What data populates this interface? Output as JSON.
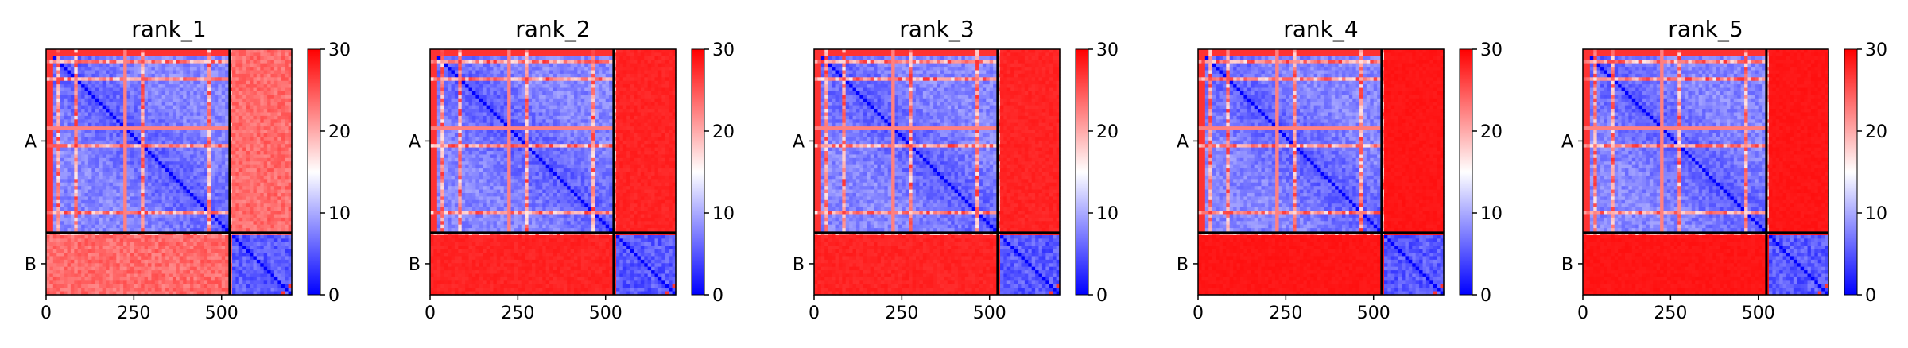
{
  "chart_data": [
    {
      "type": "heatmap",
      "title": "rank_1",
      "chains": [
        "A",
        "B"
      ],
      "chain_lengths": [
        523,
        177
      ],
      "x_ticks": [
        "0",
        "250",
        "500"
      ],
      "x_tick_values": [
        0,
        250,
        500
      ],
      "colorbar": {
        "ticks": [
          "0",
          "10",
          "20",
          "30"
        ],
        "tick_values": [
          0,
          10,
          20,
          30
        ],
        "range": [
          0,
          30
        ],
        "colormap": "bwr"
      },
      "inter_chain_level": 0.85
    },
    {
      "type": "heatmap",
      "title": "rank_2",
      "chains": [
        "A",
        "B"
      ],
      "chain_lengths": [
        523,
        177
      ],
      "x_ticks": [
        "0",
        "250",
        "500"
      ],
      "x_tick_values": [
        0,
        250,
        500
      ],
      "colorbar": {
        "ticks": [
          "0",
          "10",
          "20",
          "30"
        ],
        "tick_values": [
          0,
          10,
          20,
          30
        ],
        "range": [
          0,
          30
        ],
        "colormap": "bwr"
      },
      "inter_chain_level": 0.95
    },
    {
      "type": "heatmap",
      "title": "rank_3",
      "chains": [
        "A",
        "B"
      ],
      "chain_lengths": [
        523,
        177
      ],
      "x_ticks": [
        "0",
        "250",
        "500"
      ],
      "x_tick_values": [
        0,
        250,
        500
      ],
      "colorbar": {
        "ticks": [
          "0",
          "10",
          "20",
          "30"
        ],
        "tick_values": [
          0,
          10,
          20,
          30
        ],
        "range": [
          0,
          30
        ],
        "colormap": "bwr"
      },
      "inter_chain_level": 0.95
    },
    {
      "type": "heatmap",
      "title": "rank_4",
      "chains": [
        "A",
        "B"
      ],
      "chain_lengths": [
        523,
        177
      ],
      "x_ticks": [
        "0",
        "250",
        "500"
      ],
      "x_tick_values": [
        0,
        250,
        500
      ],
      "colorbar": {
        "ticks": [
          "0",
          "10",
          "20",
          "30"
        ],
        "tick_values": [
          0,
          10,
          20,
          30
        ],
        "range": [
          0,
          30
        ],
        "colormap": "bwr"
      },
      "inter_chain_level": 0.97
    },
    {
      "type": "heatmap",
      "title": "rank_5",
      "chains": [
        "A",
        "B"
      ],
      "chain_lengths": [
        523,
        177
      ],
      "x_ticks": [
        "0",
        "250",
        "500"
      ],
      "x_tick_values": [
        0,
        250,
        500
      ],
      "colorbar": {
        "ticks": [
          "0",
          "10",
          "20",
          "30"
        ],
        "tick_values": [
          0,
          10,
          20,
          30
        ],
        "range": [
          0,
          30
        ],
        "colormap": "bwr"
      },
      "inter_chain_level": 0.97
    }
  ]
}
